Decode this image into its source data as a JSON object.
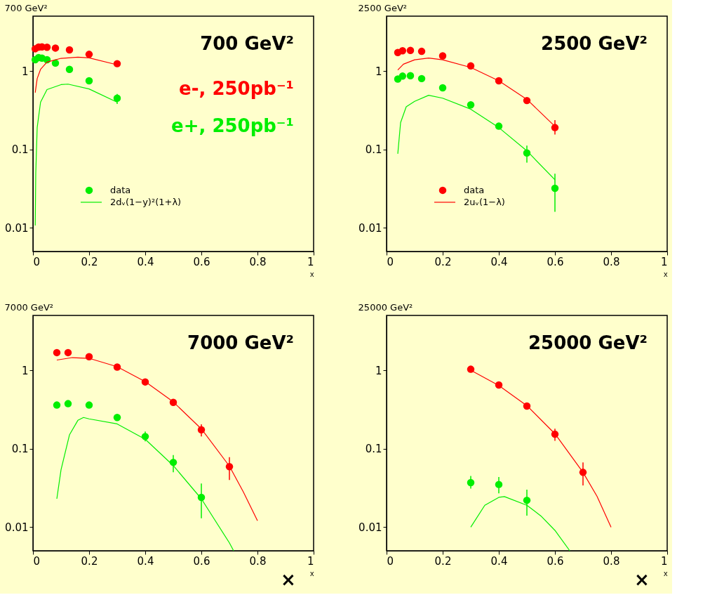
{
  "chart_data": [
    {
      "type": "scatter",
      "title": "700 GeV²",
      "xlabel": "x",
      "xlim": [
        0,
        1
      ],
      "xticks": [
        0,
        0.2,
        0.4,
        0.6,
        0.8,
        1
      ],
      "ylim": [
        0.005,
        5
      ],
      "yticks": [
        0.01,
        0.1,
        1
      ],
      "log": true,
      "grid": false,
      "legend": "bottom left",
      "annotations": [
        "700 GeV²",
        "e-, 250pb⁻¹",
        "e+, 250pb⁻¹"
      ],
      "series": [
        {
          "marker": "circle",
          "color": "#ff0000",
          "x": [
            0.008,
            0.02,
            0.032,
            0.05,
            0.08,
            0.13,
            0.2,
            0.3
          ],
          "values": [
            1.92,
            2.02,
            2.03,
            2.01,
            1.96,
            1.86,
            1.63,
            1.24
          ]
        },
        {
          "marker": "circle",
          "name": "data",
          "color": "#00ee00",
          "x": [
            0.008,
            0.02,
            0.032,
            0.05,
            0.08,
            0.13,
            0.2,
            0.3
          ],
          "values": [
            1.39,
            1.48,
            1.46,
            1.39,
            1.26,
            1.05,
            0.75,
            0.45
          ],
          "errors": [
            null,
            null,
            null,
            null,
            null,
            null,
            null,
            [
              0.38,
              0.51
            ]
          ]
        },
        {
          "type": "line",
          "marker": "none",
          "color": "#ff0000",
          "x": [
            0.008,
            0.015,
            0.027,
            0.05,
            0.1,
            0.16,
            0.2,
            0.3
          ],
          "values": [
            0.53,
            0.8,
            1.05,
            1.3,
            1.45,
            1.5,
            1.47,
            1.2
          ]
        },
        {
          "type": "line",
          "marker": "none",
          "name": "2dᵥ(1−y)²(1+λ)",
          "color": "#00ee00",
          "x": [
            0.008,
            0.01,
            0.015,
            0.027,
            0.05,
            0.1,
            0.125,
            0.2,
            0.3
          ],
          "values": [
            0.0107,
            0.05,
            0.19,
            0.4,
            0.58,
            0.67,
            0.68,
            0.59,
            0.4
          ]
        }
      ]
    },
    {
      "type": "scatter",
      "title": "2500 GeV²",
      "xlabel": "x",
      "xlim": [
        0,
        1
      ],
      "xticks": [
        0,
        0.2,
        0.4,
        0.6,
        0.8,
        1
      ],
      "ylim": [
        0.005,
        5
      ],
      "yticks": [
        0.01,
        0.1,
        1
      ],
      "log": true,
      "grid": false,
      "legend": "bottom left",
      "annotations": [
        "2500 GeV²"
      ],
      "series": [
        {
          "marker": "circle",
          "name": "data",
          "color": "#ff0000",
          "x": [
            0.04,
            0.057,
            0.085,
            0.125,
            0.2,
            0.3,
            0.4,
            0.5,
            0.6
          ],
          "values": [
            1.72,
            1.81,
            1.83,
            1.78,
            1.56,
            1.16,
            0.75,
            0.42,
            0.19
          ],
          "errors": [
            null,
            null,
            null,
            null,
            null,
            null,
            null,
            null,
            [
              0.155,
              0.236
            ]
          ]
        },
        {
          "marker": "circle",
          "color": "#00ee00",
          "x": [
            0.04,
            0.057,
            0.085,
            0.125,
            0.2,
            0.3,
            0.4,
            0.5,
            0.6
          ],
          "values": [
            0.79,
            0.86,
            0.87,
            0.8,
            0.61,
            0.37,
            0.198,
            0.09,
            0.032
          ],
          "errors": [
            null,
            null,
            null,
            null,
            null,
            null,
            null,
            [
              0.068,
              0.112
            ],
            [
              0.016,
              0.049
            ]
          ]
        },
        {
          "type": "line",
          "marker": "none",
          "name": "2uᵥ(1−λ)",
          "color": "#ff0000",
          "x": [
            0.04,
            0.06,
            0.1,
            0.15,
            0.2,
            0.3,
            0.4,
            0.5,
            0.6
          ],
          "values": [
            1.03,
            1.22,
            1.39,
            1.46,
            1.39,
            1.11,
            0.75,
            0.435,
            0.197
          ]
        },
        {
          "type": "line",
          "marker": "none",
          "color": "#00ee00",
          "x": [
            0.04,
            0.05,
            0.07,
            0.1,
            0.15,
            0.2,
            0.3,
            0.4,
            0.5,
            0.6
          ],
          "values": [
            0.088,
            0.22,
            0.35,
            0.41,
            0.49,
            0.45,
            0.326,
            0.19,
            0.096,
            0.041
          ]
        }
      ]
    },
    {
      "type": "scatter",
      "title": "7000 GeV²",
      "xlabel": "x",
      "xlim": [
        0,
        1
      ],
      "xticks": [
        0,
        0.2,
        0.4,
        0.6,
        0.8,
        1
      ],
      "ylim": [
        0.005,
        5
      ],
      "yticks": [
        0.01,
        0.1,
        1
      ],
      "log": true,
      "grid": false,
      "annotations": [
        "7000 GeV²",
        "×"
      ],
      "series": [
        {
          "marker": "circle",
          "color": "#ff0000",
          "x": [
            0.085,
            0.125,
            0.2,
            0.3,
            0.4,
            0.5,
            0.6,
            0.7
          ],
          "values": [
            1.68,
            1.68,
            1.49,
            1.1,
            0.71,
            0.39,
            0.174,
            0.059
          ],
          "errors": [
            null,
            null,
            null,
            null,
            null,
            null,
            [
              0.143,
              0.205
            ],
            [
              0.04,
              0.078
            ]
          ]
        },
        {
          "marker": "circle",
          "color": "#00ee00",
          "x": [
            0.085,
            0.125,
            0.2,
            0.3,
            0.4,
            0.5,
            0.6
          ],
          "values": [
            0.36,
            0.375,
            0.36,
            0.25,
            0.143,
            0.067,
            0.024
          ],
          "errors": [
            null,
            null,
            null,
            null,
            [
              0.124,
              0.166
            ],
            [
              0.05,
              0.083
            ],
            [
              0.013,
              0.036
            ]
          ]
        },
        {
          "type": "line",
          "marker": "none",
          "color": "#ff0000",
          "x": [
            0.085,
            0.14,
            0.2,
            0.3,
            0.4,
            0.5,
            0.6,
            0.7,
            0.75,
            0.8
          ],
          "values": [
            1.35,
            1.45,
            1.42,
            1.11,
            0.715,
            0.395,
            0.179,
            0.06,
            0.028,
            0.0121
          ]
        },
        {
          "type": "line",
          "marker": "none",
          "color": "#00ee00",
          "x": [
            0.085,
            0.1,
            0.13,
            0.16,
            0.18,
            0.2,
            0.3,
            0.4,
            0.5,
            0.6,
            0.7,
            0.715
          ],
          "values": [
            0.023,
            0.054,
            0.15,
            0.23,
            0.25,
            0.24,
            0.207,
            0.132,
            0.061,
            0.023,
            0.0063,
            0.005
          ]
        }
      ]
    },
    {
      "type": "scatter",
      "title": "25000 GeV²",
      "xlabel": "x",
      "xlim": [
        0,
        1
      ],
      "xticks": [
        0,
        0.2,
        0.4,
        0.6,
        0.8,
        1
      ],
      "ylim": [
        0.005,
        5
      ],
      "yticks": [
        0.01,
        0.1,
        1
      ],
      "log": true,
      "grid": false,
      "annotations": [
        "25000 GeV²",
        "×"
      ],
      "series": [
        {
          "marker": "circle",
          "color": "#ff0000",
          "x": [
            0.3,
            0.4,
            0.5,
            0.6,
            0.7
          ],
          "values": [
            1.03,
            0.65,
            0.35,
            0.153,
            0.05
          ],
          "errors": [
            null,
            null,
            null,
            [
              0.126,
              0.18
            ],
            [
              0.034,
              0.067
            ]
          ]
        },
        {
          "marker": "circle",
          "color": "#00ee00",
          "x": [
            0.3,
            0.4,
            0.5
          ],
          "values": [
            0.037,
            0.035,
            0.022
          ],
          "errors": [
            [
              0.031,
              0.045
            ],
            [
              0.027,
              0.0435
            ],
            [
              0.014,
              0.03
            ]
          ]
        },
        {
          "type": "line",
          "marker": "none",
          "color": "#ff0000",
          "x": [
            0.3,
            0.4,
            0.5,
            0.6,
            0.7,
            0.75,
            0.8
          ],
          "values": [
            1.0,
            0.64,
            0.354,
            0.155,
            0.05,
            0.0247,
            0.01
          ]
        },
        {
          "type": "line",
          "marker": "none",
          "color": "#00ee00",
          "x": [
            0.3,
            0.35,
            0.4,
            0.42,
            0.5,
            0.55,
            0.6,
            0.653
          ],
          "values": [
            0.01,
            0.019,
            0.024,
            0.0245,
            0.019,
            0.0139,
            0.0091,
            0.005
          ]
        }
      ]
    }
  ]
}
